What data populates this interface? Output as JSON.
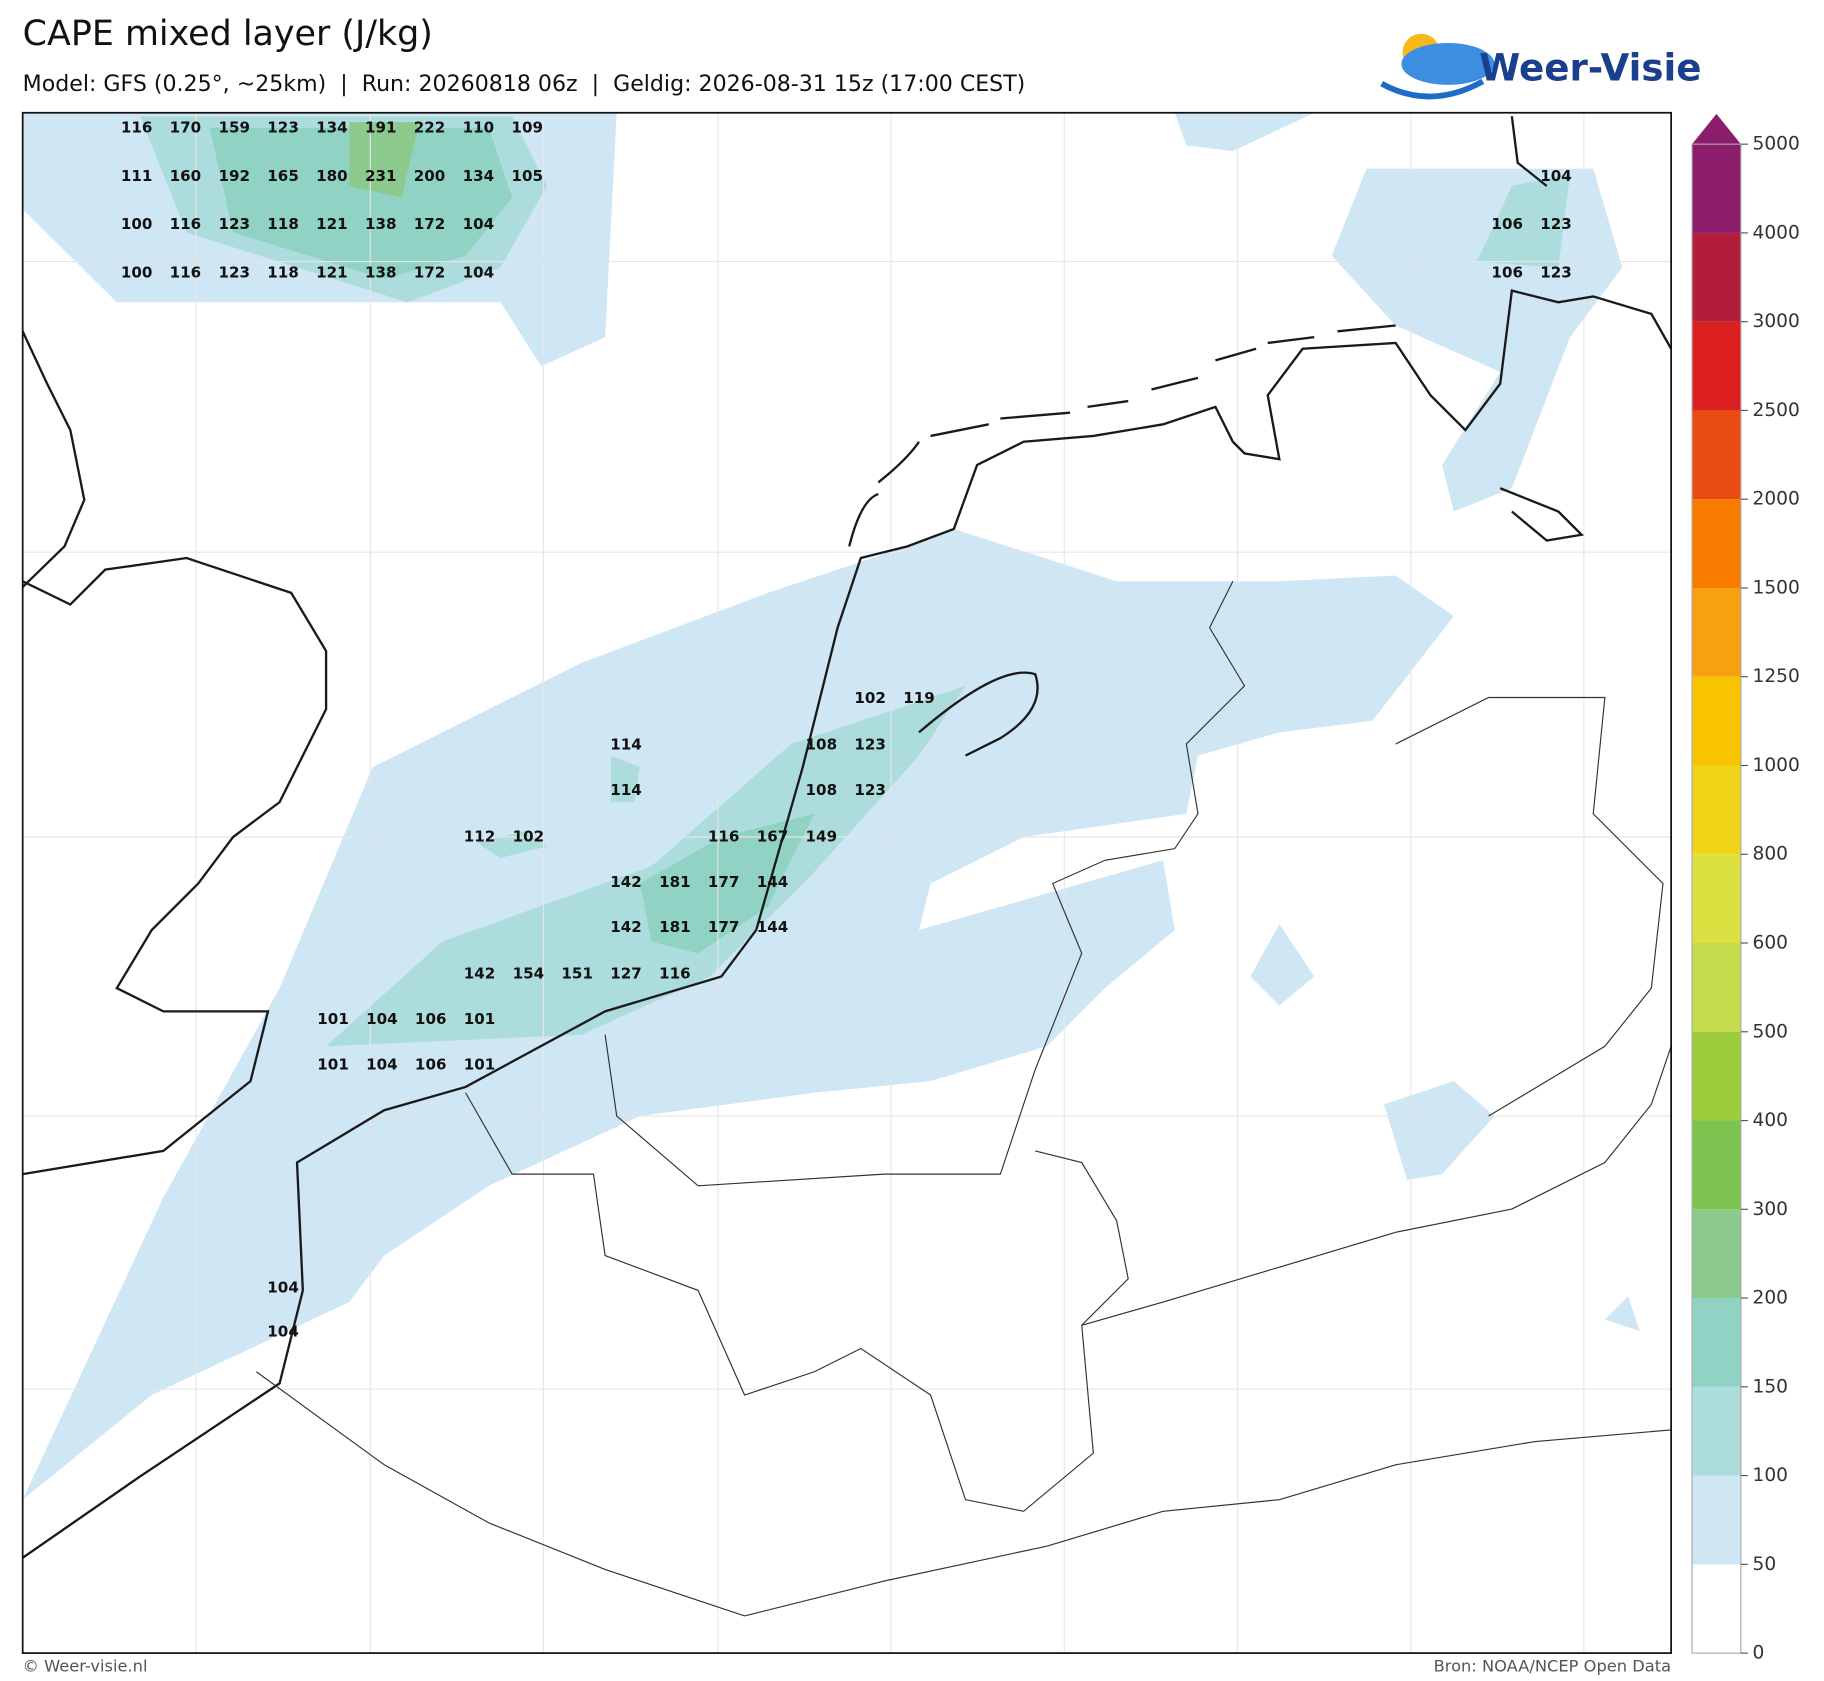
{
  "header": {
    "title": "CAPE mixed layer (J/kg)",
    "subtitle": "Model: GFS (0.25°, ~25km)  |  Run: 20260818 06z  |  Geldig: 2026-08-31 15z (17:00 CEST)",
    "logo": "Weer-Visie"
  },
  "map_labels": [
    [
      116,
      170,
      159,
      123,
      134,
      191,
      222,
      110,
      109
    ],
    [
      111,
      160,
      192,
      165,
      180,
      231,
      200,
      134,
      105
    ],
    [
      100,
      116,
      123,
      118,
      121,
      138,
      172,
      104
    ],
    [
      100,
      116,
      123,
      118,
      121,
      138,
      172,
      104
    ],
    [
      104
    ],
    [
      106,
      123
    ],
    [
      106,
      123
    ],
    [
      102,
      119
    ],
    [
      114
    ],
    [
      108,
      123
    ],
    [
      114
    ],
    [
      108,
      123
    ],
    [
      112,
      102
    ],
    [
      116,
      167,
      149
    ],
    [
      142,
      181,
      177,
      144
    ],
    [
      142,
      181,
      177,
      144
    ],
    [
      142,
      154,
      151,
      127,
      116
    ],
    [
      101,
      104,
      106,
      101
    ],
    [
      101,
      104,
      106,
      101
    ],
    [
      104
    ],
    [
      104
    ]
  ],
  "colorbar": {
    "ticks": [
      0,
      50,
      100,
      150,
      200,
      300,
      400,
      500,
      600,
      800,
      1000,
      1250,
      1500,
      2000,
      2500,
      3000,
      4000,
      5000
    ],
    "colors": [
      "#ffffff",
      "#cfe6f5",
      "#acdcdc",
      "#90d2c4",
      "#8cc98c",
      "#7cc350",
      "#9ccc3c",
      "#c4dc4c",
      "#dce040",
      "#f0d418",
      "#f8c400",
      "#f8a010",
      "#f87c00",
      "#e84c10",
      "#dc2020",
      "#b41c3c",
      "#8c1c6c"
    ]
  },
  "footer": {
    "left": "© Weer-visie.nl",
    "right": "Bron: NOAA/NCEP Open Data"
  }
}
